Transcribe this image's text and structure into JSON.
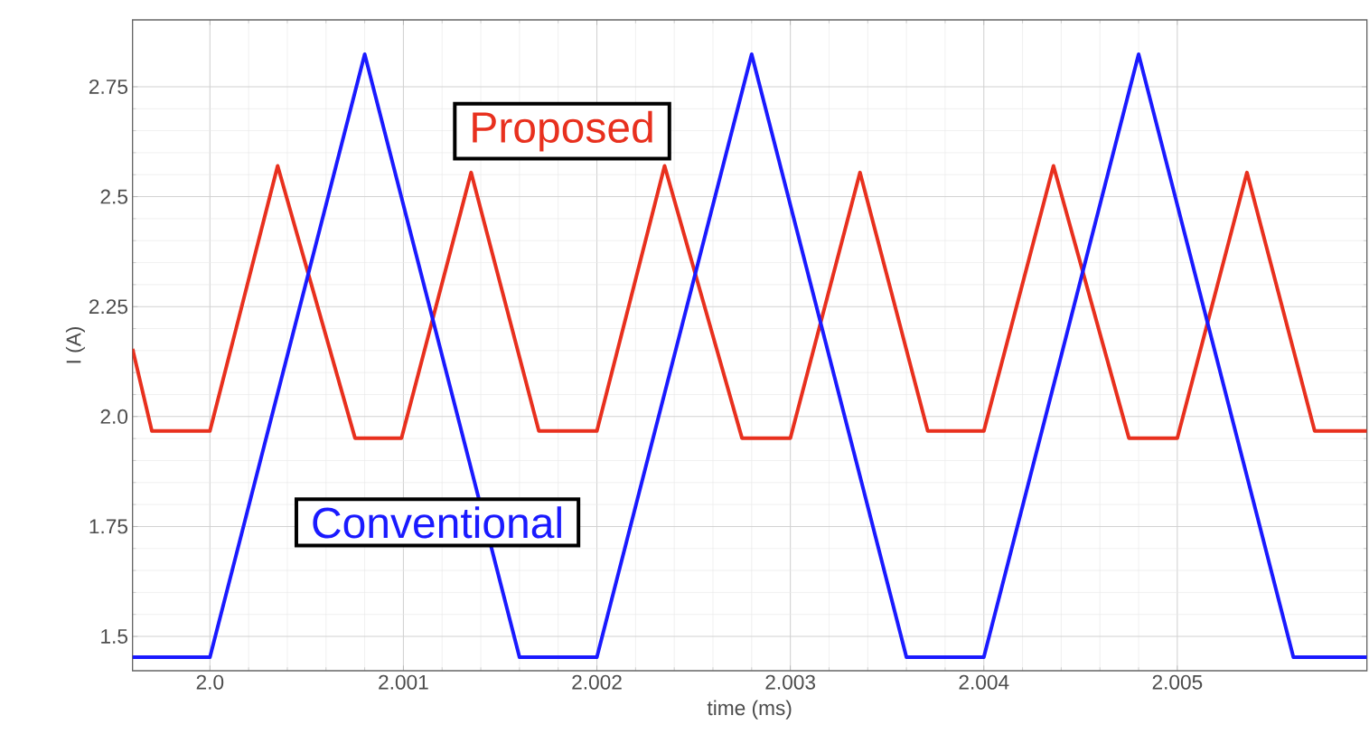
{
  "chart_data": {
    "type": "line",
    "xlabel": "time (ms)",
    "ylabel": "I (A)",
    "xlim": [
      1.9996,
      2.00598
    ],
    "ylim": [
      1.422,
      2.902
    ],
    "xticks": [
      {
        "value": 2.0,
        "label": "2.0"
      },
      2.001,
      2.002,
      2.003,
      2.004,
      2.005
    ],
    "yticks": [
      1.5,
      1.75,
      {
        "value": 2.0,
        "label": "2.0"
      },
      2.25,
      2.5,
      2.75
    ],
    "grid": true,
    "marker": "none",
    "line_style": "solid",
    "series": [
      {
        "name": "Proposed",
        "color": "#e8301e",
        "x": [
          1.9996,
          1.9997,
          2.0,
          2.00035,
          2.00075,
          2.00099,
          2.00135,
          2.0017,
          2.002,
          2.00235,
          2.00275,
          2.003,
          2.00336,
          2.00371,
          2.004,
          2.00436,
          2.00475,
          2.005,
          2.00536,
          2.00571,
          2.00598
        ],
        "values": [
          2.154,
          1.967,
          1.967,
          2.57,
          1.951,
          1.951,
          2.555,
          1.967,
          1.967,
          2.57,
          1.951,
          1.951,
          2.555,
          1.967,
          1.967,
          2.57,
          1.951,
          1.951,
          2.555,
          1.967,
          1.967
        ]
      },
      {
        "name": "Conventional",
        "color": "#1a1aff",
        "x": [
          1.9996,
          2.0,
          2.0008,
          2.0016,
          2.002,
          2.0028,
          2.0036,
          2.004,
          2.0048,
          2.0056,
          2.00598
        ],
        "values": [
          1.453,
          1.453,
          2.824,
          1.453,
          1.453,
          2.824,
          1.453,
          1.453,
          2.824,
          1.453,
          1.453
        ]
      }
    ]
  }
}
